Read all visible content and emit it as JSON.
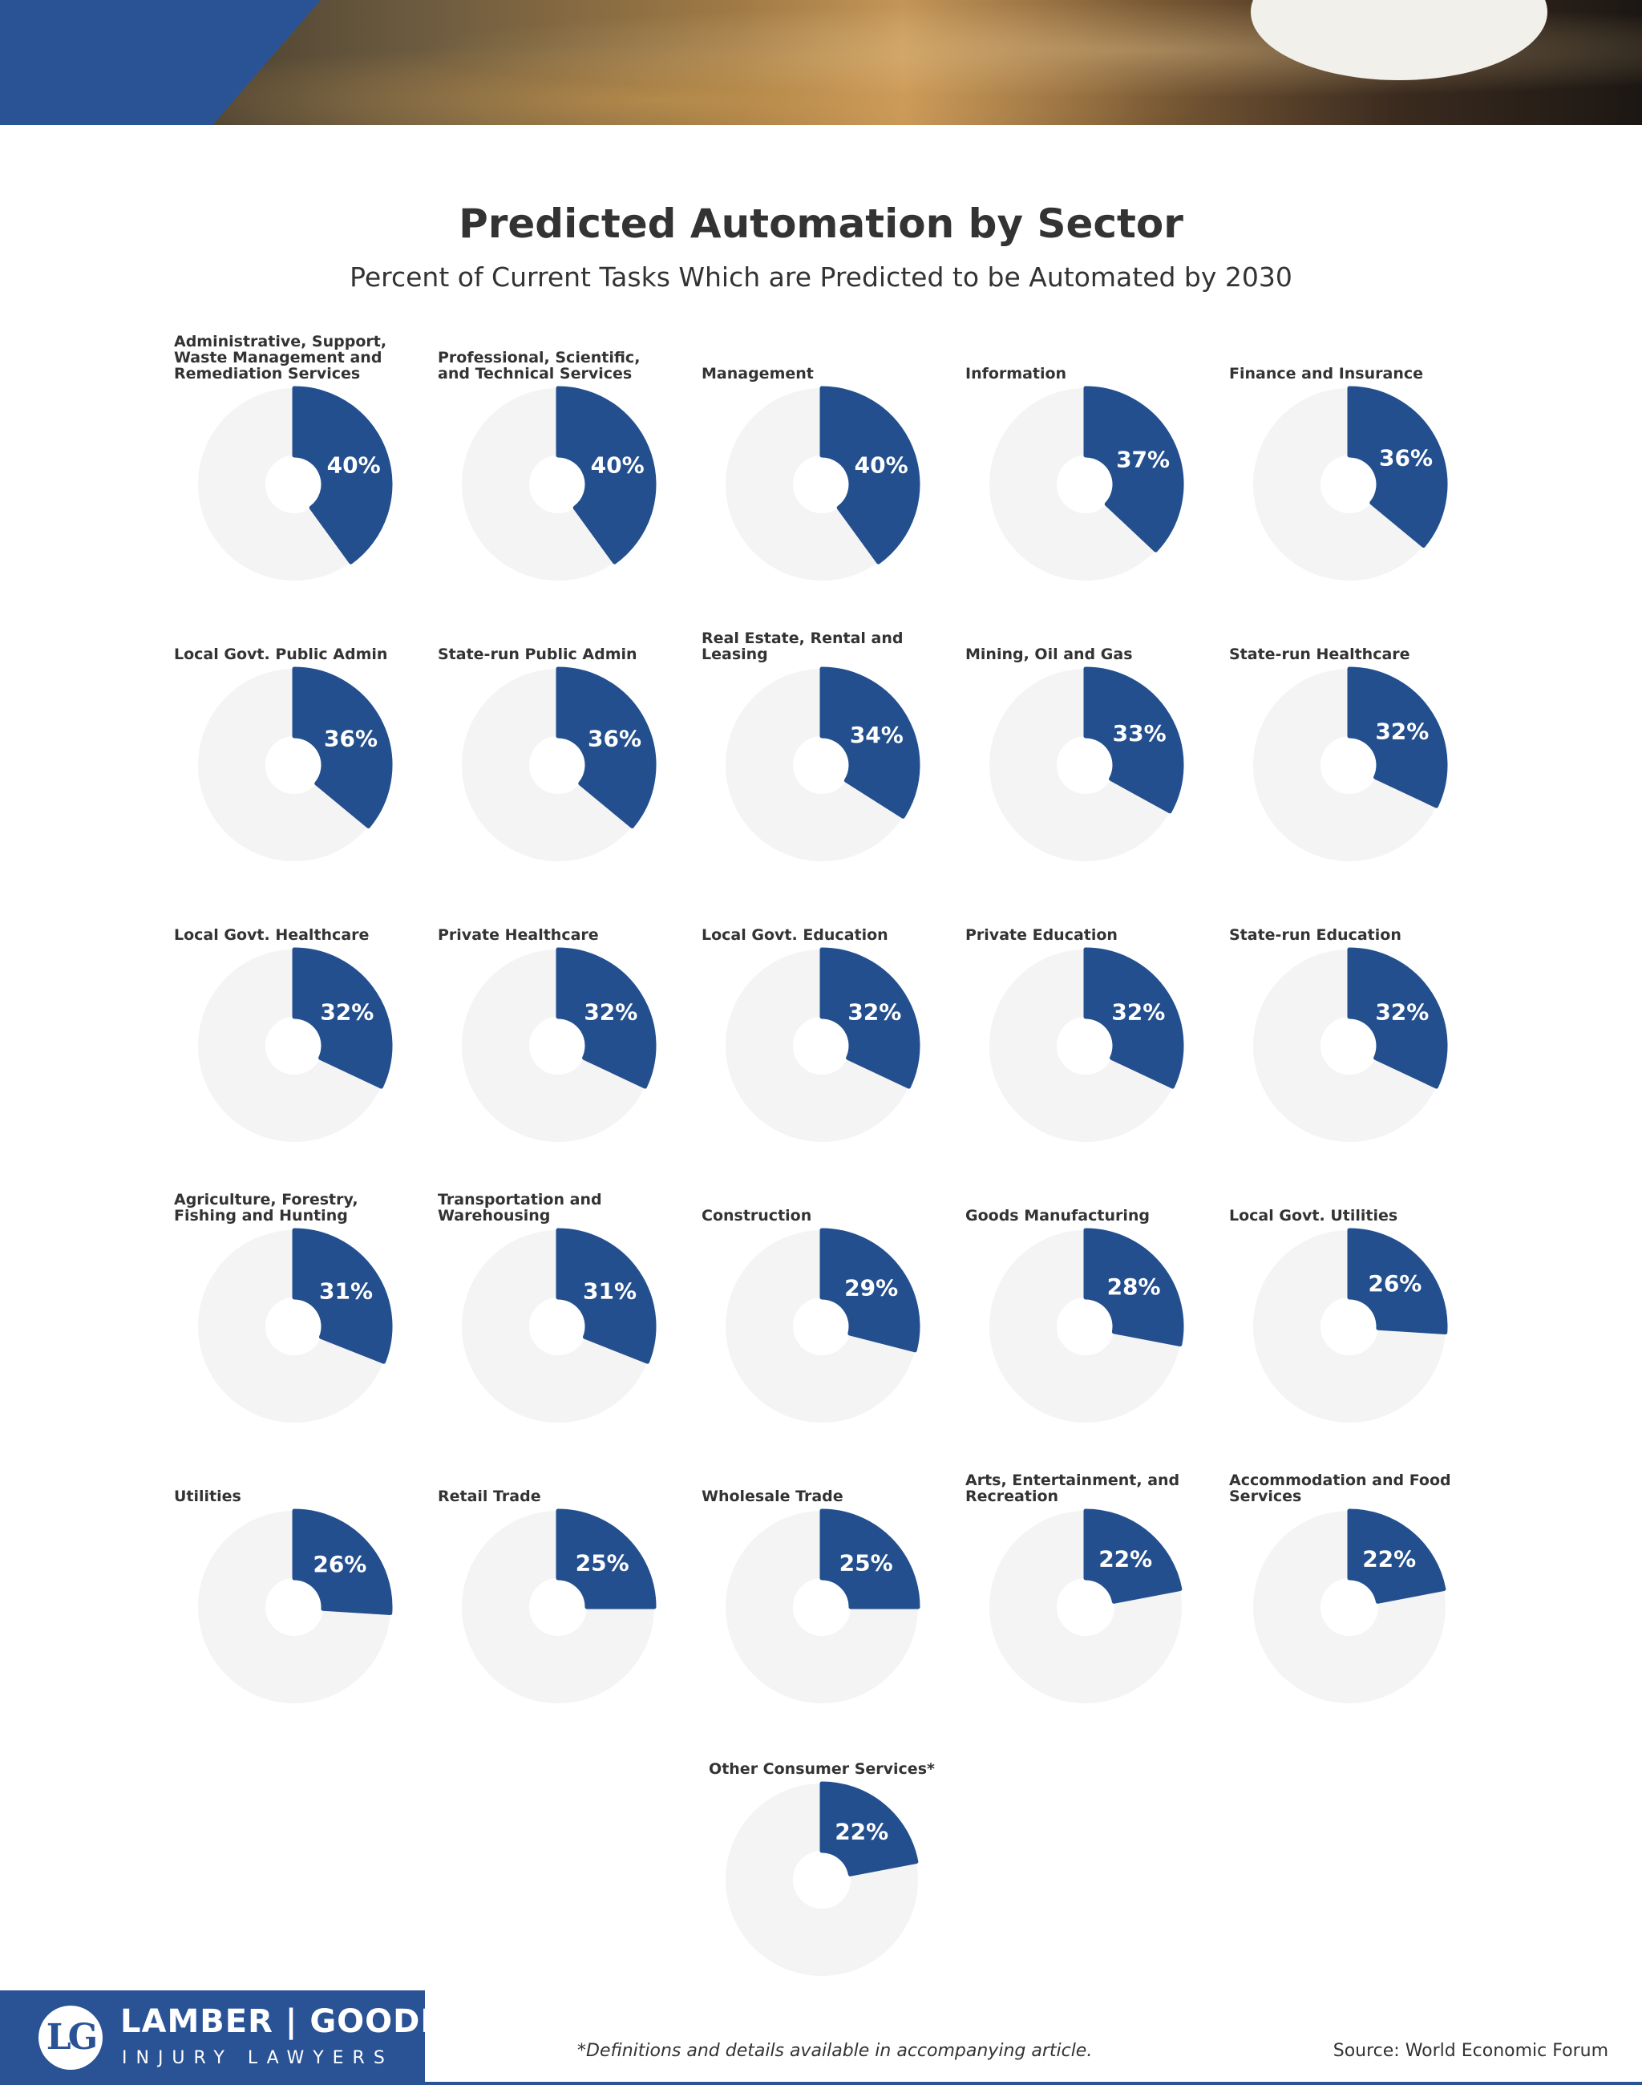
{
  "colors": {
    "accent": "#234f8e",
    "track": "#f4f4f4",
    "text": "#333333",
    "brand": "#2a5396"
  },
  "chart_data": {
    "type": "pie",
    "title": "Predicted Automation by Sector",
    "subtitle": "Percent of Current Tasks Which are Predicted to be Automated by 2030",
    "unit": "%",
    "categories": [
      "Administrative, Support, Waste Management and Remediation Services",
      "Professional, Scientific, and Technical Services",
      "Management",
      "Information",
      "Finance and Insurance",
      "Local Govt. Public Admin",
      "State-run Public Admin",
      "Real Estate, Rental and Leasing",
      "Mining, Oil and Gas",
      "State-run Healthcare",
      "Local Govt. Healthcare",
      "Private Healthcare",
      "Local Govt. Education",
      "Private Education",
      "State-run Education",
      "Agriculture, Forestry, Fishing and Hunting",
      "Transportation and Warehousing",
      "Construction",
      "Goods Manufacturing",
      "Local Govt. Utilities",
      "Utilities",
      "Retail Trade",
      "Wholesale Trade",
      "Arts, Entertainment, and Recreation",
      "Accommodation and Food Services",
      "Other Consumer Services*"
    ],
    "values": [
      40,
      40,
      40,
      37,
      36,
      36,
      36,
      34,
      33,
      32,
      32,
      32,
      32,
      32,
      32,
      31,
      31,
      29,
      28,
      26,
      26,
      25,
      25,
      22,
      22,
      22
    ],
    "labels": [
      "40%",
      "40%",
      "40%",
      "37%",
      "36%",
      "36%",
      "36%",
      "34%",
      "33%",
      "32%",
      "32%",
      "32%",
      "32%",
      "32%",
      "32%",
      "31%",
      "31%",
      "29%",
      "28%",
      "26%",
      "26%",
      "25%",
      "25%",
      "22%",
      "22%",
      "22%"
    ]
  },
  "footer": {
    "brand_mark": "LG",
    "brand_name": "LAMBER | GOODNOW",
    "brand_sub": "INJURY LAWYERS",
    "footnote": "*Definitions and details available in accompanying article.",
    "source": "Source: World Economic Forum"
  }
}
